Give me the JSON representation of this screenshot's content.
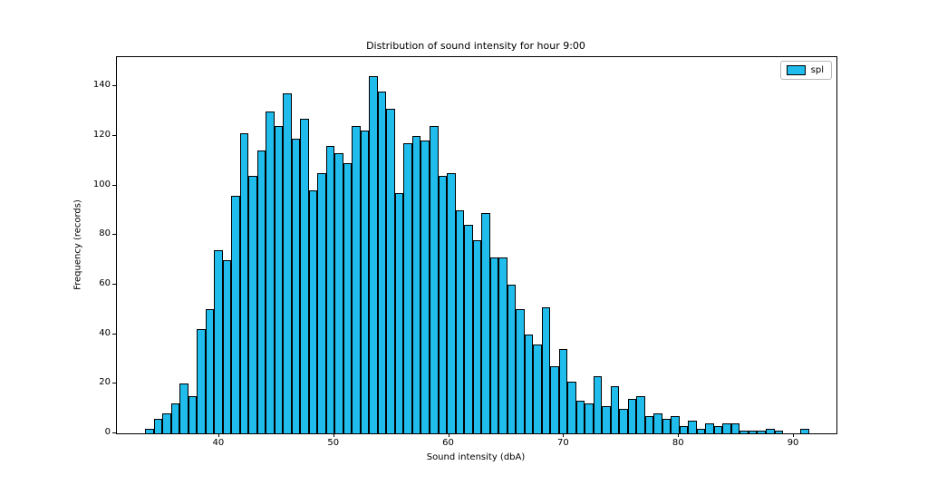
{
  "figure": {
    "background": "#ffffff"
  },
  "chart_data": {
    "type": "bar",
    "subtype": "histogram",
    "title": "Distribution of sound intensity for hour 9:00",
    "xlabel": "Sound intensity (dbA)",
    "ylabel": "Frequency (records)",
    "legend_entries": [
      "spl"
    ],
    "legend_position": "upper right",
    "bar_color": "#1FBCEC",
    "bar_edge_color": "#000000",
    "grid": false,
    "xlim": [
      31.1,
      93.7
    ],
    "ylim": [
      0,
      151.8
    ],
    "x_ticks": [
      40,
      50,
      60,
      70,
      80,
      90
    ],
    "y_ticks": [
      0,
      20,
      40,
      60,
      80,
      100,
      120,
      140
    ],
    "bin_start": 33.55,
    "bin_width": 0.75,
    "values": [
      2,
      6,
      8,
      12,
      20,
      15,
      42,
      50,
      74,
      70,
      96,
      121,
      104,
      114,
      130,
      124,
      137,
      119,
      127,
      98,
      105,
      116,
      113,
      109,
      124,
      122,
      144,
      138,
      131,
      97,
      117,
      120,
      118,
      124,
      104,
      105,
      90,
      84,
      78,
      89,
      71,
      71,
      60,
      50,
      40,
      36,
      51,
      27,
      34,
      21,
      13,
      12,
      23,
      11,
      19,
      10,
      14,
      15,
      7,
      8,
      6,
      7,
      3,
      5,
      2,
      4,
      3,
      4,
      4,
      1,
      1,
      1,
      2,
      1,
      0,
      0,
      2
    ]
  }
}
